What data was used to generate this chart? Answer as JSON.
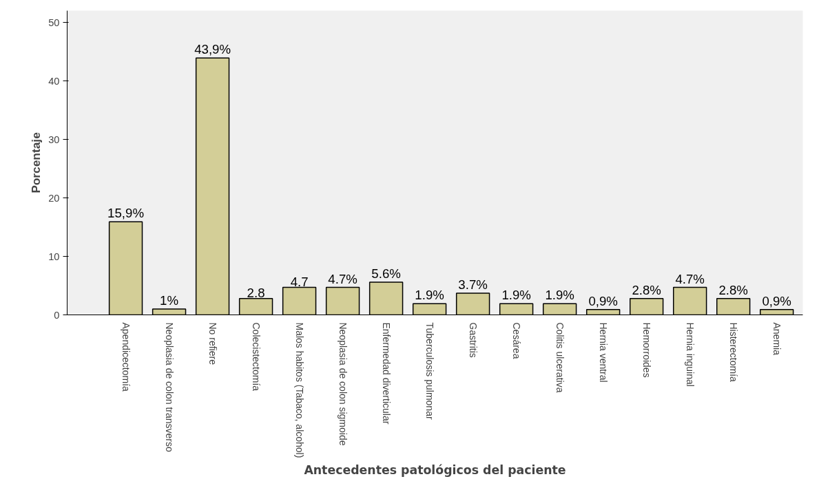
{
  "chart_data": {
    "type": "bar",
    "xlabel": "Antecedentes patológicos del paciente",
    "ylabel": "Porcentaje",
    "categories": [
      "Apendicectomía",
      "Neoplasia de colon transverso",
      "No refiere",
      "Colecistectomía",
      "Malos habitos (Tabaco, alcohol)",
      "Neoplasia de colon sigmoide",
      "Enfermedad diverticular",
      "Tuberculosis pulmonar",
      "Gastritis",
      "Cesárea",
      "Colitis ulcerativa",
      "Hernia ventral",
      "Hemorroides",
      "Hernia inguinal",
      "Histerectomía",
      "Anemia"
    ],
    "values": [
      15.9,
      1,
      43.9,
      2.8,
      4.7,
      4.7,
      5.6,
      1.9,
      3.7,
      1.9,
      1.9,
      0.9,
      2.8,
      4.7,
      2.8,
      0.9
    ],
    "value_labels": [
      "15,9%",
      "1%",
      "43,9%",
      "2.8",
      "4.7",
      "4.7%",
      "5.6%",
      "1.9%",
      "3.7%",
      "1.9%",
      "1.9%",
      "0,9%",
      "2.8%",
      "4.7%",
      "2.8%",
      "0,9%"
    ],
    "color": "#d3ce97",
    "ylim": [
      0,
      52
    ],
    "yticks": [
      0,
      10,
      20,
      30,
      40,
      50
    ],
    "grid": false
  }
}
